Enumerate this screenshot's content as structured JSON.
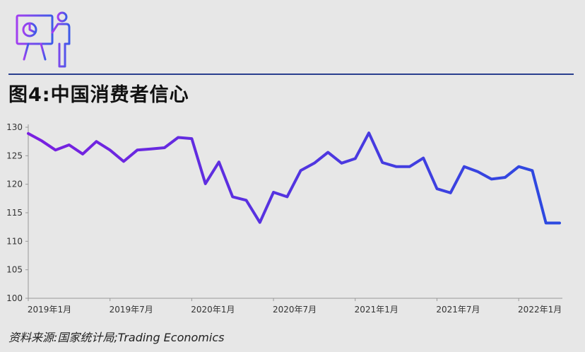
{
  "title": "图4:中国消费者信心",
  "source": "资料来源:国家统计局;Trading Economics",
  "logo_icon": "presenter-at-easel-icon",
  "colors": {
    "line_start": "#7a1fe0",
    "line_end": "#2b4ae0",
    "rule": "#2a3f8f",
    "background": "#e7e7e7"
  },
  "chart_data": {
    "type": "line",
    "title": "图4:中国消费者信心",
    "xlabel": "",
    "ylabel": "",
    "ylim": [
      100,
      130
    ],
    "yticks": [
      100,
      105,
      110,
      115,
      120,
      125,
      130
    ],
    "grid": false,
    "xticks": [
      {
        "index": 0,
        "label": "2019年1月"
      },
      {
        "index": 6,
        "label": "2019年7月"
      },
      {
        "index": 12,
        "label": "2020年1月"
      },
      {
        "index": 18,
        "label": "2020年7月"
      },
      {
        "index": 24,
        "label": "2021年1月"
      },
      {
        "index": 30,
        "label": "2021年7月"
      },
      {
        "index": 36,
        "label": "2022年1月"
      }
    ],
    "x": [
      "2019-01",
      "2019-02",
      "2019-03",
      "2019-04",
      "2019-05",
      "2019-06",
      "2019-07",
      "2019-08",
      "2019-09",
      "2019-10",
      "2019-11",
      "2019-12",
      "2020-01",
      "2020-02",
      "2020-03",
      "2020-04",
      "2020-05",
      "2020-06",
      "2020-07",
      "2020-08",
      "2020-09",
      "2020-10",
      "2020-11",
      "2020-12",
      "2021-01",
      "2021-02",
      "2021-03",
      "2021-04",
      "2021-05",
      "2021-06",
      "2021-07",
      "2021-08",
      "2021-09",
      "2021-10",
      "2021-11",
      "2021-12",
      "2022-01",
      "2022-02",
      "2022-03",
      "2022-04"
    ],
    "series": [
      {
        "values": [
          128.9,
          127.6,
          126.0,
          126.9,
          125.3,
          127.5,
          126.0,
          124.0,
          126.0,
          126.2,
          126.4,
          128.2,
          128.0,
          120.1,
          123.9,
          117.8,
          117.2,
          113.3,
          118.6,
          117.8,
          122.4,
          123.7,
          125.6,
          123.7,
          124.5,
          129.0,
          123.8,
          123.1,
          123.1,
          124.6,
          119.2,
          118.5,
          123.1,
          122.2,
          120.9,
          121.2,
          123.1,
          122.4,
          113.2,
          113.2
        ]
      }
    ]
  }
}
